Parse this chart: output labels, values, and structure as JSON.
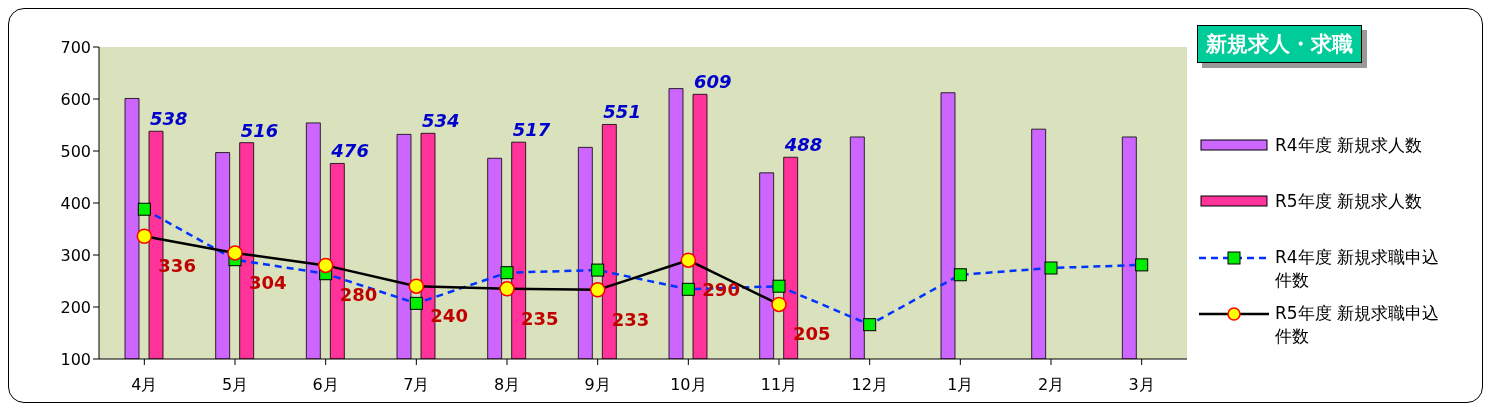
{
  "chart_data": {
    "type": "bar",
    "title": "新規求人・求職",
    "categories": [
      "4月",
      "5月",
      "6月",
      "7月",
      "8月",
      "9月",
      "10月",
      "11月",
      "12月",
      "1月",
      "2月",
      "3月"
    ],
    "series": [
      {
        "name": "R4年度 新規求人数",
        "color": "#cc66ff",
        "values": [
          601,
          497,
          554,
          532,
          486,
          507,
          620,
          458,
          527,
          612,
          542,
          527
        ]
      },
      {
        "name": "R5年度 新規求人数",
        "color": "#ff3399",
        "values": [
          538,
          516,
          476,
          534,
          517,
          551,
          609,
          488,
          null,
          null,
          null,
          null
        ],
        "value_labels": [
          "538",
          "516",
          "476",
          "534",
          "517",
          "551",
          "609",
          "488",
          null,
          null,
          null,
          null
        ]
      },
      {
        "name": "R4年度 新規求職申込件数",
        "type": "line",
        "color": "#0033ff",
        "line_style": "dashed",
        "marker": "square",
        "values": [
          388,
          291,
          264,
          207,
          266,
          271,
          234,
          240,
          166,
          262,
          275,
          281
        ]
      },
      {
        "name": "R5年度 新規求職申込件数",
        "type": "line",
        "color": "#000000",
        "line_style": "solid",
        "marker": "circle",
        "values": [
          336,
          304,
          280,
          240,
          235,
          233,
          290,
          205,
          null,
          null,
          null,
          null
        ],
        "value_labels": [
          "336",
          "304",
          "280",
          "240",
          "235",
          "233",
          "290",
          "205",
          null,
          null,
          null,
          null
        ]
      }
    ],
    "ylim": [
      100,
      700
    ],
    "yticks": [
      100,
      200,
      300,
      400,
      500,
      600,
      700
    ],
    "grid": false,
    "legend": "right"
  }
}
